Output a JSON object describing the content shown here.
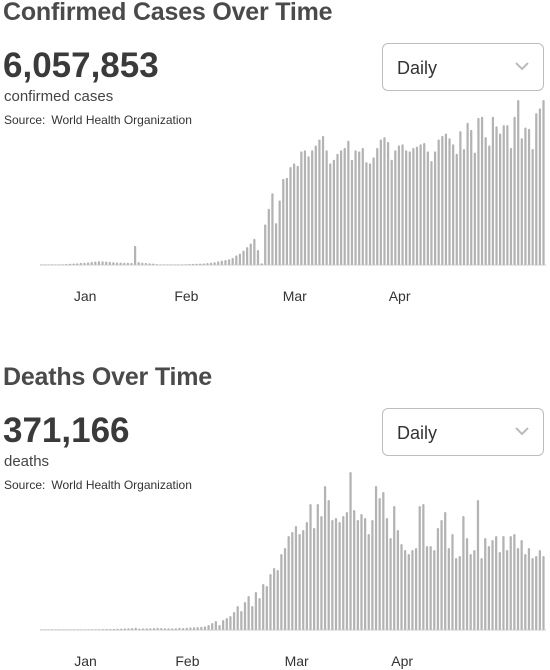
{
  "cases": {
    "title": "Confirmed Cases Over Time",
    "total": "6,057,853",
    "total_label": "confirmed cases",
    "source_label": "Source:",
    "source_name": "World Health Organization",
    "dropdown_value": "Daily"
  },
  "deaths": {
    "title": "Deaths Over Time",
    "total": "371,166",
    "total_label": "deaths",
    "source_label": "Source:",
    "source_name": "World Health Organization",
    "dropdown_value": "Daily"
  },
  "colors": {
    "bar": "#b3b3b3",
    "axis": "#cccccc",
    "text": "#333333"
  },
  "chart_data": [
    {
      "type": "bar",
      "name": "Confirmed cases, daily",
      "xlabel": "",
      "ylabel": "",
      "x_tick_labels": [
        "Jan",
        "Feb",
        "Mar",
        "Apr"
      ],
      "x_tick_days": [
        12,
        40,
        70,
        99
      ],
      "y_max": 138000,
      "values": [
        0,
        0,
        0,
        100,
        200,
        400,
        600,
        800,
        1000,
        1300,
        1500,
        1800,
        2000,
        2200,
        2600,
        2900,
        3200,
        3100,
        2900,
        2700,
        2400,
        2200,
        2100,
        2000,
        1900,
        1800,
        16000,
        2500,
        2000,
        1800,
        1500,
        1200,
        700,
        500,
        400,
        350,
        300,
        350,
        400,
        500,
        600,
        800,
        900,
        1000,
        1200,
        1400,
        1700,
        2000,
        2400,
        3000,
        3700,
        4200,
        4800,
        6000,
        8000,
        9500,
        12000,
        15000,
        18000,
        22000,
        12500,
        1500,
        34000,
        47000,
        60000,
        35000,
        54000,
        72000,
        73000,
        82000,
        85000,
        83000,
        95000,
        96000,
        91000,
        96000,
        100000,
        105000,
        108000,
        96000,
        85000,
        88000,
        93000,
        96000,
        98000,
        104000,
        88000,
        96000,
        95000,
        98000,
        86000,
        85000,
        90000,
        98000,
        105000,
        107000,
        103000,
        88000,
        96000,
        100000,
        101000,
        96000,
        95000,
        98000,
        99000,
        101000,
        102000,
        95000,
        87000,
        95000,
        105000,
        108000,
        110000,
        106000,
        101000,
        93000,
        112000,
        97000,
        119000,
        113000,
        94000,
        123000,
        124000,
        107000,
        100000,
        124000,
        116000,
        110000,
        117000,
        117000,
        98000,
        124000,
        138000,
        106000,
        115000,
        114000,
        97000,
        127000,
        131000,
        138000
      ]
    },
    {
      "type": "bar",
      "name": "Deaths, daily",
      "xlabel": "",
      "ylabel": "",
      "x_tick_labels": [
        "Jan",
        "Feb",
        "Mar",
        "Apr"
      ],
      "x_tick_days": [
        12,
        40,
        70,
        99
      ],
      "y_max": 8250,
      "values": [
        0,
        0,
        0,
        0,
        0,
        0,
        0,
        0,
        5,
        10,
        15,
        20,
        25,
        30,
        30,
        35,
        40,
        45,
        50,
        50,
        55,
        60,
        70,
        80,
        90,
        100,
        120,
        70,
        80,
        90,
        90,
        100,
        110,
        100,
        90,
        90,
        80,
        90,
        110,
        100,
        120,
        130,
        140,
        150,
        160,
        180,
        250,
        350,
        450,
        250,
        500,
        600,
        700,
        900,
        1200,
        950,
        1400,
        1700,
        1200,
        1900,
        1600,
        2300,
        2200,
        2800,
        3100,
        3000,
        3800,
        4100,
        4700,
        4900,
        5200,
        4800,
        5000,
        5400,
        6300,
        5100,
        6300,
        5700,
        7200,
        6500,
        5500,
        5600,
        5400,
        5700,
        5900,
        7900,
        6000,
        5500,
        5800,
        5600,
        4800,
        5500,
        7200,
        6600,
        6900,
        5600,
        4600,
        6200,
        5000,
        4300,
        4000,
        3800,
        4000,
        4100,
        6200,
        6300,
        4200,
        4200,
        4000,
        5100,
        5500,
        5900,
        4100,
        4800,
        3600,
        3700,
        5700,
        4600,
        3800,
        4000,
        6500,
        3600,
        4600,
        4200,
        4500,
        4700,
        3900,
        4700,
        4000,
        4700,
        4800,
        4100,
        4500,
        3800,
        4100,
        3600,
        3700,
        4000,
        3700
      ]
    }
  ]
}
